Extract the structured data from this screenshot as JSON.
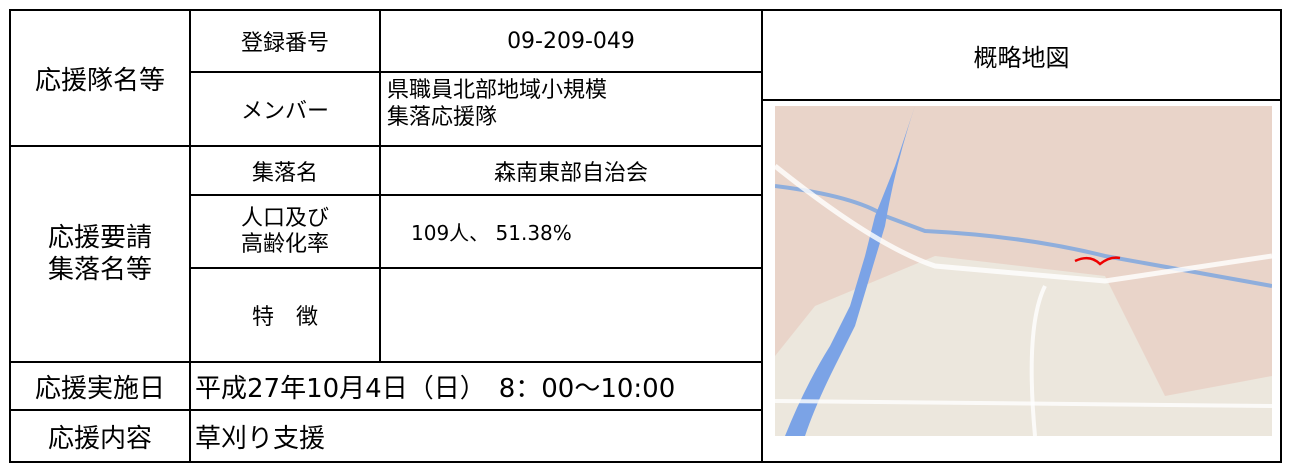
{
  "table": {
    "support_team": {
      "heading": "応援隊名等",
      "reg_label": "登録番号",
      "reg_value": "09-209-049",
      "member_label": "メンバー",
      "member_value": "県職員北部地域小規模集落応援隊"
    },
    "village": {
      "heading": "応援要請集落名等",
      "name_label": "集落名",
      "name_value": "森南東部自治会",
      "pop_label": "人口及び高齢化率",
      "pop_value": "109人、 51.38%",
      "feature_label": "特　徴",
      "feature_value": ""
    },
    "date": {
      "label": "応援実施日",
      "value": "平成27年10月4日（日）　8：00～10:00"
    },
    "content": {
      "label": "応援内容",
      "value": "草刈り支援"
    },
    "map": {
      "heading": "概略地図"
    }
  }
}
